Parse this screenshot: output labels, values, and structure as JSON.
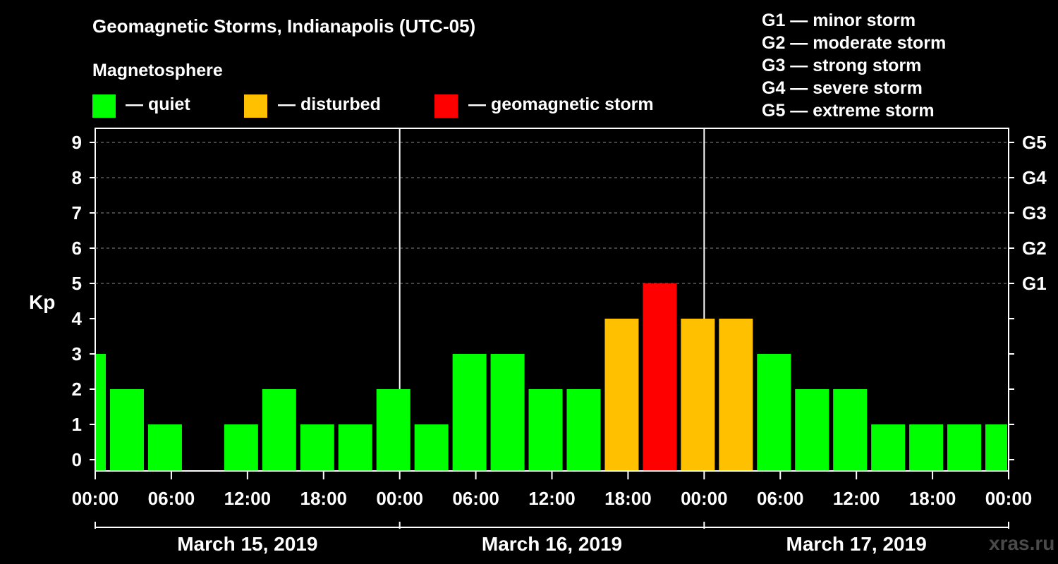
{
  "title": "Geomagnetic Storms, Indianapolis (UTC-05)",
  "magnetosphere_label": "Magnetosphere",
  "legend": [
    {
      "label": "— quiet",
      "color": "#00ff00"
    },
    {
      "label": "— disturbed",
      "color": "#ffc000"
    },
    {
      "label": "— geomagnetic storm",
      "color": "#ff0000"
    }
  ],
  "storm_scale": [
    "G1 — minor storm",
    "G2 — moderate storm",
    "G3 — strong storm",
    "G4 — severe storm",
    "G5 — extreme storm"
  ],
  "watermark": "xras.ru",
  "chart_data": {
    "type": "bar",
    "ylabel": "Kp",
    "ylim": [
      0,
      9
    ],
    "yticks": [
      0,
      1,
      2,
      3,
      4,
      5,
      6,
      7,
      8,
      9
    ],
    "g_levels": [
      {
        "kp": 5,
        "label": "G1"
      },
      {
        "kp": 6,
        "label": "G2"
      },
      {
        "kp": 7,
        "label": "G3"
      },
      {
        "kp": 8,
        "label": "G4"
      },
      {
        "kp": 9,
        "label": "G5"
      }
    ],
    "x_tick_labels": [
      "00:00",
      "06:00",
      "12:00",
      "18:00",
      "00:00",
      "06:00",
      "12:00",
      "18:00",
      "00:00",
      "06:00",
      "12:00",
      "18:00",
      "00:00"
    ],
    "dates": [
      "March 15, 2019",
      "March 16, 2019",
      "March 17, 2019"
    ],
    "colors": {
      "quiet": "#00ff00",
      "disturbed": "#ffc000",
      "storm": "#ff0000"
    },
    "kp_values": [
      3,
      2,
      1,
      0,
      1,
      2,
      1,
      1,
      2,
      1,
      3,
      3,
      2,
      2,
      4,
      5,
      4,
      4,
      3,
      2,
      2,
      1,
      1,
      1,
      1
    ]
  }
}
